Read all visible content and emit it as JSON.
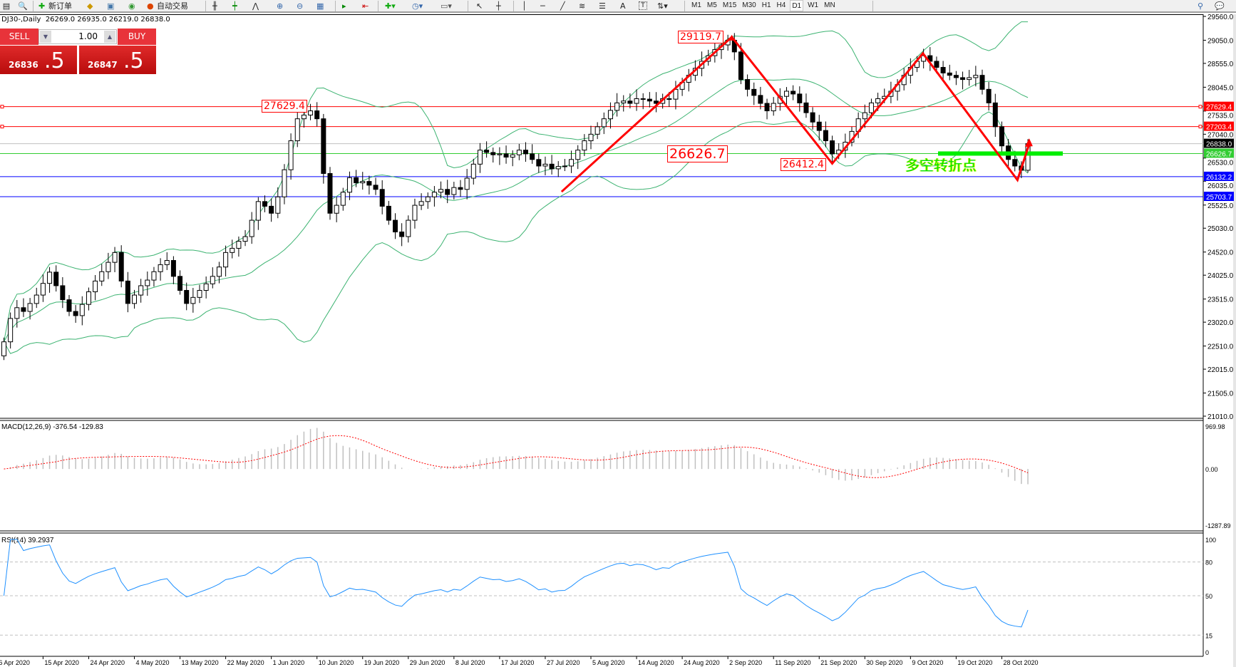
{
  "toolbar": {
    "new_order": "新订单",
    "auto_trading": "自动交易",
    "icons": [
      "new-order-icon",
      "gold-icon",
      "terminal-icon",
      "signal-icon",
      "auto-trading-icon",
      "bar-chart-icon",
      "candle-chart-icon",
      "line-chart-icon",
      "zoom-in-icon",
      "zoom-out-icon",
      "tile-icon",
      "autoscroll-icon",
      "chart-shift-icon",
      "indicators-icon",
      "periods-icon",
      "templates-icon",
      "cursor-icon",
      "crosshair-icon",
      "vertical-line-icon",
      "horizontal-line-icon",
      "trendline-icon",
      "fibonacci-icon",
      "fibo-fan-icon",
      "text-icon",
      "text-label-icon",
      "arrows-icon",
      "search-icon",
      "chat-icon"
    ],
    "text_tool": "A",
    "label_tool": "T",
    "timeframes": [
      "M1",
      "M5",
      "M15",
      "M30",
      "H1",
      "H4",
      "D1",
      "W1",
      "MN"
    ],
    "active_timeframe": "D1"
  },
  "chart": {
    "symbol_line": "DJ30-,Daily  26269.0 26935.0 26219.0 26838.0",
    "symbol": "DJ30-",
    "period": "Daily",
    "ohlc": {
      "open": 26269.0,
      "high": 26935.0,
      "low": 26219.0,
      "close": 26838.0
    }
  },
  "trade_panel": {
    "sell_label": "SELL",
    "buy_label": "BUY",
    "lots": "1.00",
    "sell_price_main": "26836",
    "sell_price_big": ".5",
    "buy_price_main": "26847",
    "buy_price_big": ".5",
    "color": "#e8333a"
  },
  "annotations": {
    "high_label": "29119.7",
    "left_label": "27629.4",
    "mid_label": "26626.7",
    "low_label": "26412.4",
    "chinese_text": "多空转折点",
    "zigzag_prices": [
      25810,
      29119.7,
      26412.4,
      28770,
      26060,
      26830
    ],
    "zigzag_color": "#ff0000"
  },
  "chart_data": {
    "type": "candlestick",
    "price_axis_labels": [
      "29560.0",
      "29050.0",
      "28555.0",
      "28045.0",
      "27535.0",
      "27040.0",
      "26530.0",
      "26035.0",
      "25525.0",
      "25030.0",
      "24520.0",
      "24025.0",
      "23515.0",
      "23020.0",
      "22510.0",
      "22015.0",
      "21505.0",
      "21010.0"
    ],
    "ylim": [
      21010,
      29560
    ],
    "date_labels": [
      "6 Apr 2020",
      "15 Apr 2020",
      "24 Apr 2020",
      "4 May 2020",
      "13 May 2020",
      "22 May 2020",
      "1 Jun 2020",
      "10 Jun 2020",
      "19 Jun 2020",
      "29 Jun 2020",
      "8 Jul 2020",
      "17 Jul 2020",
      "27 Jul 2020",
      "5 Aug 2020",
      "14 Aug 2020",
      "24 Aug 2020",
      "2 Sep 2020",
      "11 Sep 2020",
      "21 Sep 2020",
      "30 Sep 2020",
      "9 Oct 2020",
      "19 Oct 2020",
      "28 Oct 2020"
    ],
    "closes": [
      22600,
      23100,
      23330,
      23250,
      23420,
      23600,
      23850,
      24090,
      23800,
      23500,
      23250,
      23160,
      23400,
      23670,
      23900,
      24100,
      24300,
      24510,
      23900,
      23420,
      23600,
      23800,
      23920,
      24100,
      24250,
      24340,
      24000,
      23700,
      23420,
      23550,
      23700,
      23840,
      24000,
      24200,
      24510,
      24600,
      24750,
      24850,
      25200,
      25600,
      25500,
      25350,
      25700,
      26280,
      26900,
      27370,
      27450,
      27540,
      27370,
      26200,
      25350,
      25520,
      25800,
      26110,
      26000,
      26030,
      25950,
      25860,
      25500,
      25200,
      24950,
      24850,
      25200,
      25520,
      25600,
      25700,
      25800,
      25860,
      25750,
      25900,
      25860,
      26100,
      26400,
      26700,
      26650,
      26600,
      26620,
      26550,
      26600,
      26700,
      26620,
      26500,
      26360,
      26400,
      26300,
      26350,
      26360,
      26500,
      26700,
      26900,
      27040,
      27200,
      27370,
      27550,
      27710,
      27750,
      27700,
      27800,
      27790,
      27750,
      27700,
      27800,
      27790,
      28000,
      28150,
      28300,
      28450,
      28600,
      28720,
      28850,
      28950,
      29050,
      28800,
      28210,
      28000,
      27870,
      27700,
      27540,
      27700,
      27850,
      27960,
      27900,
      27710,
      27500,
      27300,
      27120,
      26900,
      26620,
      26700,
      26870,
      27100,
      27370,
      27500,
      27710,
      27800,
      27850,
      27960,
      28100,
      28300,
      28470,
      28600,
      28720,
      28600,
      28470,
      28350,
      28300,
      28250,
      28210,
      28250,
      28300,
      28000,
      27710,
      27200,
      26790,
      26500,
      26360,
      26269,
      26838
    ],
    "last_bar": {
      "open": 26269.0,
      "high": 26935.0,
      "low": 26219.0,
      "close": 26838.0
    },
    "horizontal_lines": [
      {
        "price": 27629.4,
        "label": "27629.4",
        "color": "#ff0000"
      },
      {
        "price": 27203.4,
        "label": "27203.4",
        "color": "#ff0000"
      },
      {
        "price": 26838.0,
        "label": "26838.0",
        "color": "#c0c0c0",
        "tag_color": "#000000"
      },
      {
        "price": 26626.7,
        "label": "26626.7",
        "color": "#32cd32"
      },
      {
        "price": 26132.2,
        "label": "26132.2",
        "color": "#0000ff"
      },
      {
        "price": 25703.7,
        "label": "25703.7",
        "color": "#0000ff"
      }
    ],
    "bollinger_color": "#3cb371",
    "macd": {
      "label": "MACD(12,26,9) -376.54 -129.83",
      "axis_labels": [
        "969.98",
        "0.00",
        "-1287.89"
      ],
      "ylim": [
        -1287.89,
        969.98
      ],
      "hist_color": "#c0c0c0",
      "signal_color": "#ff0000"
    },
    "rsi": {
      "label": "RSI(14) 39.2937",
      "axis_labels": [
        "100",
        "80",
        "50",
        "15",
        "0"
      ],
      "levels": [
        80,
        50,
        15
      ],
      "ylim": [
        0,
        100
      ],
      "color": "#1e90ff"
    }
  }
}
